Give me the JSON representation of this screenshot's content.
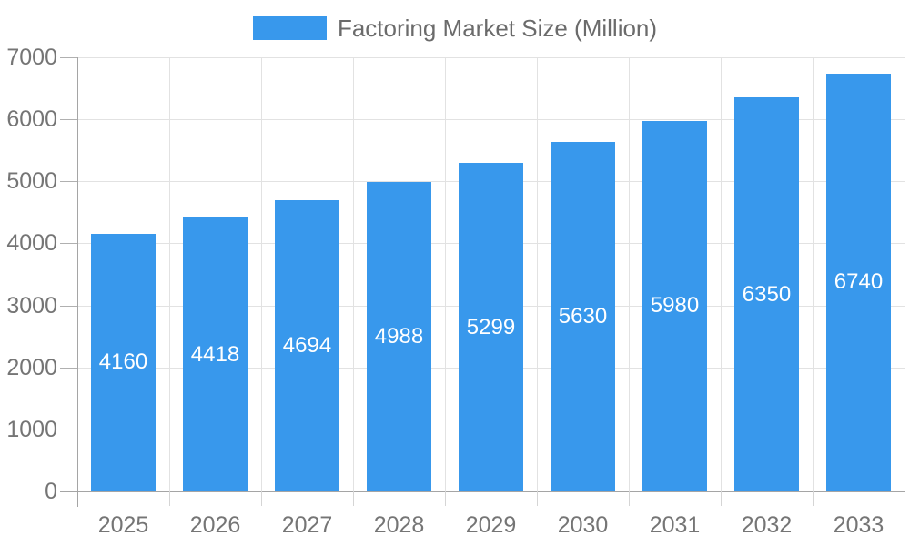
{
  "chart_data": {
    "type": "bar",
    "title": "Factoring Market Size (Million)",
    "legend_label": "Factoring Market Size (Million)",
    "legend_position": "top",
    "categories": [
      "2025",
      "2026",
      "2027",
      "2028",
      "2029",
      "2030",
      "2031",
      "2032",
      "2033"
    ],
    "values": [
      4160,
      4418,
      4694,
      4988,
      5299,
      5630,
      5980,
      6350,
      6740
    ],
    "bar_value_labels": [
      "4160",
      "4418",
      "4694",
      "4988",
      "5299",
      "5630",
      "5980",
      "6350",
      "6740"
    ],
    "xlabel": "",
    "ylabel": "",
    "ylim": [
      0,
      7000
    ],
    "y_ticks": [
      0,
      1000,
      2000,
      3000,
      4000,
      5000,
      6000,
      7000
    ],
    "y_tick_labels": [
      "0",
      "1000",
      "2000",
      "3000",
      "4000",
      "5000",
      "6000",
      "7000"
    ],
    "grid": true,
    "colors": {
      "bar": "#3898ec",
      "grid": "#e2e2e2",
      "axis": "#a5a5a5",
      "y_tick_mark": "#b0b0b0",
      "x_tick_mark": "#d5d5d5",
      "tick_text": "#757575",
      "legend_text": "#6b6b6b",
      "value_text": "#ffffff",
      "background": "#ffffff"
    }
  }
}
